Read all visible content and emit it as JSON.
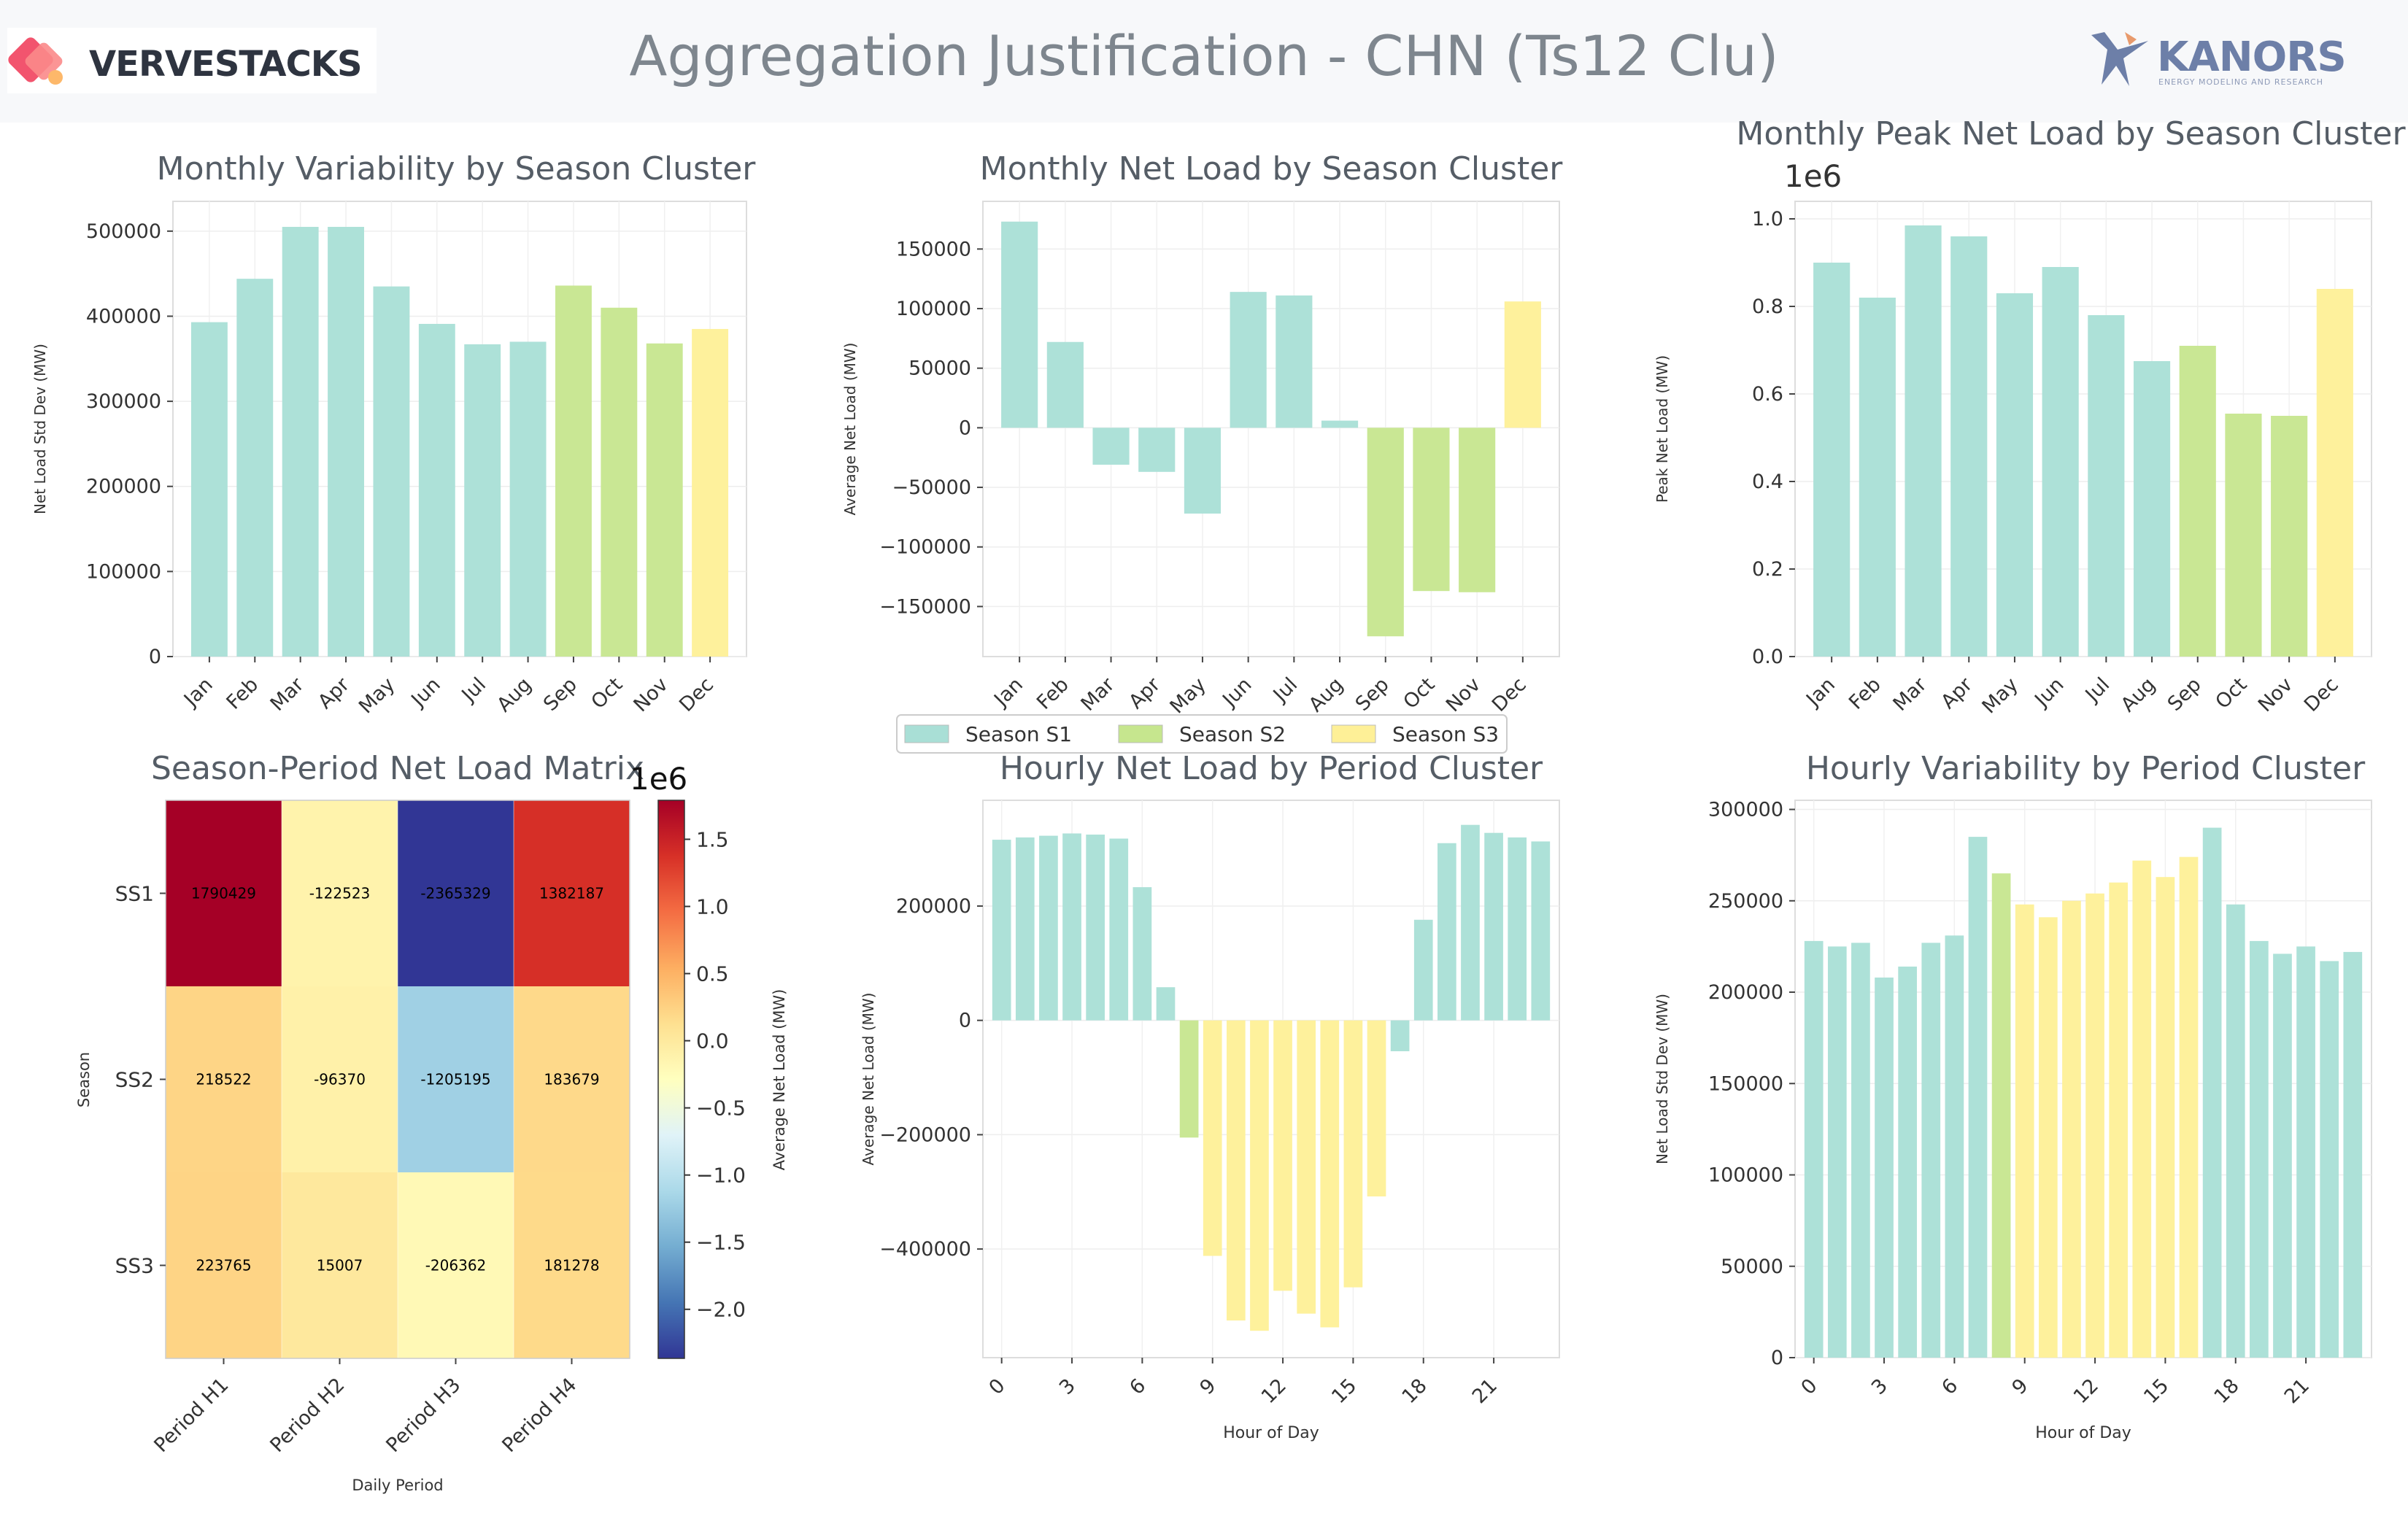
{
  "header": {
    "title": "Aggregation Justification - CHN (Ts12 Clu)",
    "logo_left_text": "VERVESTACKS",
    "logo_right_text": "KANORS",
    "logo_right_subtitle": "ENERGY MODELING AND RESEARCH"
  },
  "colors": {
    "season_s1": "#a9dfd6",
    "season_s2": "#c6e68e",
    "season_s3": "#fef097",
    "period_c1": "#a9dfd6",
    "period_c2": "#c6e68e",
    "period_c3": "#fef097"
  },
  "legend": {
    "items": [
      {
        "label": "Season S1",
        "color": "#a9dfd6"
      },
      {
        "label": "Season S2",
        "color": "#c6e68e"
      },
      {
        "label": "Season S3",
        "color": "#fef097"
      }
    ]
  },
  "chart_data": [
    {
      "type": "bar",
      "title": "Monthly Variability by Season Cluster",
      "ylabel": "Net Load Std Dev (MW)",
      "xlabel": "",
      "categories": [
        "Jan",
        "Feb",
        "Mar",
        "Apr",
        "May",
        "Jun",
        "Jul",
        "Aug",
        "Sep",
        "Oct",
        "Nov",
        "Dec"
      ],
      "values": [
        393000,
        444000,
        505000,
        505000,
        435000,
        391000,
        367000,
        370000,
        436000,
        410000,
        368000,
        385000
      ],
      "clusters": [
        "S1",
        "S1",
        "S1",
        "S1",
        "S1",
        "S1",
        "S1",
        "S1",
        "S2",
        "S2",
        "S2",
        "S3"
      ],
      "ylim": [
        0,
        535000
      ],
      "yticks": [
        0,
        100000,
        200000,
        300000,
        400000,
        500000
      ],
      "ytick_labels": [
        "0",
        "100000",
        "200000",
        "300000",
        "400000",
        "500000"
      ],
      "grid": true
    },
    {
      "type": "bar",
      "title": "Monthly Net Load by Season Cluster",
      "ylabel": "Average Net Load (MW)",
      "xlabel": "",
      "categories": [
        "Jan",
        "Feb",
        "Mar",
        "Apr",
        "May",
        "Jun",
        "Jul",
        "Aug",
        "Sep",
        "Oct",
        "Nov",
        "Dec"
      ],
      "values": [
        173000,
        72000,
        -31000,
        -37000,
        -72000,
        114000,
        111000,
        6000,
        -175000,
        -137000,
        -138000,
        106000
      ],
      "clusters": [
        "S1",
        "S1",
        "S1",
        "S1",
        "S1",
        "S1",
        "S1",
        "S1",
        "S2",
        "S2",
        "S2",
        "S3"
      ],
      "ylim": [
        -192000,
        190000
      ],
      "yticks": [
        -150000,
        -100000,
        -50000,
        0,
        50000,
        100000,
        150000
      ],
      "ytick_labels": [
        "−150000",
        "−100000",
        "−50000",
        "0",
        "50000",
        "100000",
        "150000"
      ],
      "grid": true
    },
    {
      "type": "bar",
      "title": "Monthly Peak Net Load by Season Cluster",
      "ylabel": "Peak Net Load (MW)",
      "xlabel": "",
      "scale_label": "1e6",
      "categories": [
        "Jan",
        "Feb",
        "Mar",
        "Apr",
        "May",
        "Jun",
        "Jul",
        "Aug",
        "Sep",
        "Oct",
        "Nov",
        "Dec"
      ],
      "values": [
        0.9,
        0.82,
        0.985,
        0.96,
        0.83,
        0.89,
        0.78,
        0.675,
        0.71,
        0.555,
        0.55,
        0.84
      ],
      "clusters": [
        "S1",
        "S1",
        "S1",
        "S1",
        "S1",
        "S1",
        "S1",
        "S1",
        "S2",
        "S2",
        "S2",
        "S3"
      ],
      "ylim": [
        0,
        1.04
      ],
      "yticks": [
        0,
        0.2,
        0.4,
        0.6,
        0.8,
        1.0
      ],
      "ytick_labels": [
        "0.0",
        "0.2",
        "0.4",
        "0.6",
        "0.8",
        "1.0"
      ],
      "grid": true
    },
    {
      "type": "heatmap",
      "title": "Season-Period Net Load Matrix",
      "xlabel": "Daily Period",
      "ylabel": "Season",
      "x_categories": [
        "Period H1",
        "Period H2",
        "Period H3",
        "Period H4"
      ],
      "y_categories": [
        "SS1",
        "SS2",
        "SS3"
      ],
      "values": [
        [
          1790429,
          -122523,
          -2365329,
          1382187
        ],
        [
          218522,
          -96370,
          -1205195,
          183679
        ],
        [
          223765,
          15007,
          -206362,
          181278
        ]
      ],
      "value_labels": [
        [
          "1790429",
          "-122523",
          "-2365329",
          "1382187"
        ],
        [
          "218522",
          "-96370",
          "-1205195",
          "183679"
        ],
        [
          "223765",
          "15007",
          "-206362",
          "181278"
        ]
      ],
      "colorbar": {
        "label": "Average Net Load (MW)",
        "scale_label": "1e6",
        "range": [
          -2.365329,
          1.790429
        ],
        "ticks": [
          -2.0,
          -1.5,
          -1.0,
          -0.5,
          0.0,
          0.5,
          1.0,
          1.5
        ],
        "tick_labels": [
          "−2.0",
          "−1.5",
          "−1.0",
          "−0.5",
          "0.0",
          "0.5",
          "1.0",
          "1.5"
        ],
        "colormap": "RdYlBu_r"
      }
    },
    {
      "type": "bar",
      "title": "Hourly Net Load by Period Cluster",
      "ylabel": "Average Net Load (MW)",
      "xlabel": "Hour of Day",
      "categories": [
        0,
        1,
        2,
        3,
        4,
        5,
        6,
        7,
        8,
        9,
        10,
        11,
        12,
        13,
        14,
        15,
        16,
        17,
        18,
        19,
        20,
        21,
        22,
        23
      ],
      "values": [
        316000,
        320000,
        323000,
        327000,
        325000,
        318000,
        233000,
        58000,
        -205000,
        -412000,
        -525000,
        -543000,
        -473000,
        -513000,
        -537000,
        -467000,
        -308000,
        -54000,
        176000,
        310000,
        342000,
        328000,
        320000,
        313000
      ],
      "clusters": [
        "C1",
        "C1",
        "C1",
        "C1",
        "C1",
        "C1",
        "C1",
        "C1",
        "C2",
        "C3",
        "C3",
        "C3",
        "C3",
        "C3",
        "C3",
        "C3",
        "C3",
        "C1",
        "C1",
        "C1",
        "C1",
        "C1",
        "C1",
        "C1"
      ],
      "xticks": [
        0,
        3,
        6,
        9,
        12,
        15,
        18,
        21
      ],
      "ylim": [
        -590000,
        385000
      ],
      "yticks": [
        -400000,
        -200000,
        0,
        200000
      ],
      "ytick_labels": [
        "−400000",
        "−200000",
        "0",
        "200000"
      ],
      "grid": true
    },
    {
      "type": "bar",
      "title": "Hourly Variability by Period Cluster",
      "ylabel": "Net Load Std Dev (MW)",
      "xlabel": "Hour of Day",
      "categories": [
        0,
        1,
        2,
        3,
        4,
        5,
        6,
        7,
        8,
        9,
        10,
        11,
        12,
        13,
        14,
        15,
        16,
        17,
        18,
        19,
        20,
        21,
        22,
        23
      ],
      "values": [
        228000,
        225000,
        227000,
        208000,
        214000,
        227000,
        231000,
        285000,
        265000,
        248000,
        241000,
        250000,
        254000,
        260000,
        272000,
        263000,
        274000,
        290000,
        248000,
        228000,
        221000,
        225000,
        217000,
        222000
      ],
      "clusters": [
        "C1",
        "C1",
        "C1",
        "C1",
        "C1",
        "C1",
        "C1",
        "C1",
        "C2",
        "C3",
        "C3",
        "C3",
        "C3",
        "C3",
        "C3",
        "C3",
        "C3",
        "C1",
        "C1",
        "C1",
        "C1",
        "C1",
        "C1",
        "C1"
      ],
      "xticks": [
        0,
        3,
        6,
        9,
        12,
        15,
        18,
        21
      ],
      "ylim": [
        0,
        305000
      ],
      "yticks": [
        0,
        50000,
        100000,
        150000,
        200000,
        250000,
        300000
      ],
      "ytick_labels": [
        "0",
        "50000",
        "100000",
        "150000",
        "200000",
        "250000",
        "300000"
      ],
      "grid": true
    }
  ]
}
